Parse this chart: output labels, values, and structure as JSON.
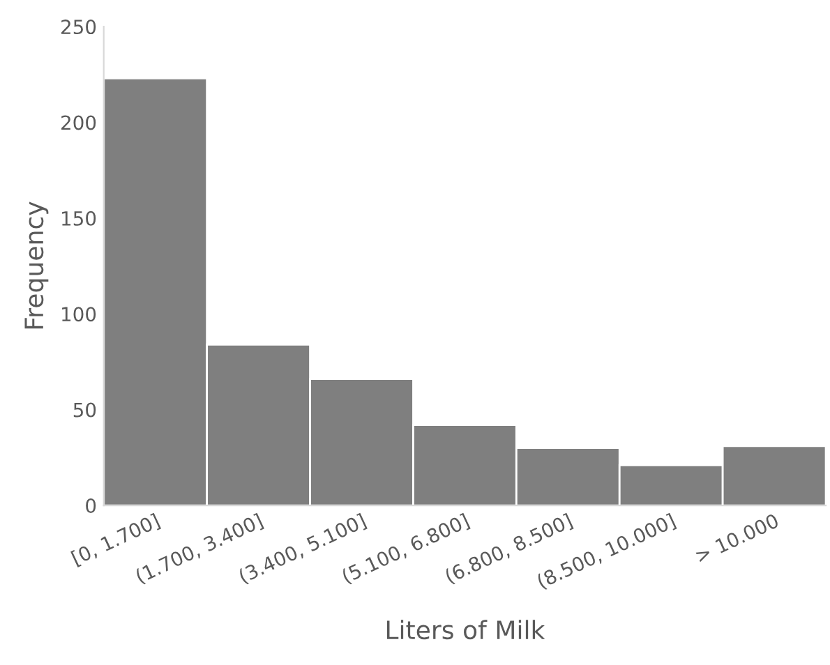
{
  "chart_data": {
    "type": "bar",
    "xlabel": "Liters of Milk",
    "ylabel": "Frequency",
    "categories": [
      "[0, 1.700]",
      "(1.700, 3.400]",
      "(3.400, 5.100]",
      "(5.100, 6.800]",
      "(6.800, 8.500]",
      "(8.500, 10.000]",
      "> 10.000"
    ],
    "values": [
      223,
      84,
      66,
      42,
      30,
      21,
      31
    ],
    "color": "#7f7f7f",
    "ylim": [
      0,
      250
    ],
    "yticks": [
      0,
      50,
      100,
      150,
      200,
      250
    ],
    "grid": false,
    "legend": false
  }
}
